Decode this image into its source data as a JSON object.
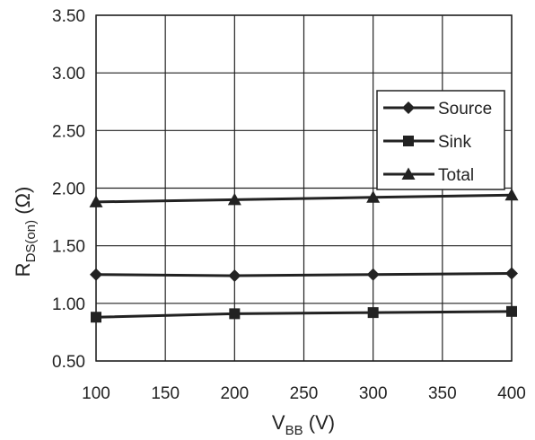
{
  "chart_data": {
    "type": "line",
    "x": [
      100,
      200,
      300,
      400
    ],
    "xlim": [
      100,
      400
    ],
    "ylim": [
      0.5,
      3.5
    ],
    "xticks": [
      "100",
      "150",
      "200",
      "250",
      "300",
      "350",
      "400"
    ],
    "yticks": [
      "0.50",
      "1.00",
      "1.50",
      "2.00",
      "2.50",
      "3.00",
      "3.50"
    ],
    "grid": true,
    "legend_position": "right",
    "xlabel": {
      "main": "V",
      "sub": "BB",
      "unit": " (V)"
    },
    "ylabel": {
      "main": "R",
      "sub": "DS(on)",
      "unit": " (Ω)"
    },
    "series": [
      {
        "name": "Source",
        "marker": "diamond",
        "values": [
          1.25,
          1.24,
          1.25,
          1.26
        ]
      },
      {
        "name": "Sink",
        "marker": "square",
        "values": [
          0.88,
          0.91,
          0.92,
          0.93
        ]
      },
      {
        "name": "Total",
        "marker": "triangle",
        "values": [
          1.88,
          1.9,
          1.92,
          1.94
        ]
      }
    ],
    "line_color": "#222222"
  }
}
